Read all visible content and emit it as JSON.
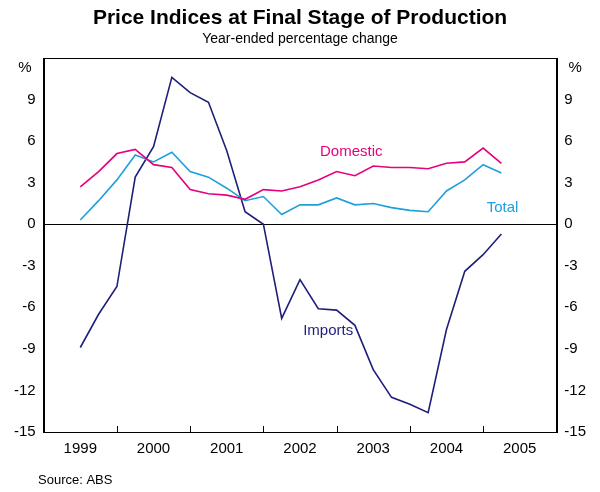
{
  "chart_data": {
    "type": "line",
    "title": "Price Indices at Final Stage of Production",
    "subtitle": "Year-ended percentage change",
    "y_label": "%",
    "source": "Source: ABS",
    "x": [
      1999.5,
      1999.75,
      2000,
      2000.25,
      2000.5,
      2000.75,
      2001,
      2001.25,
      2001.5,
      2001.75,
      2002,
      2002.25,
      2002.5,
      2002.75,
      2003,
      2003.25,
      2003.5,
      2003.75,
      2004,
      2004.25,
      2004.5,
      2004.75,
      2005,
      2005.25
    ],
    "xlim": [
      1999,
      2006
    ],
    "xticks": [
      {
        "value": 1999.5,
        "label": "1999"
      },
      {
        "value": 2000.5,
        "label": "2000"
      },
      {
        "value": 2001.5,
        "label": "2001"
      },
      {
        "value": 2002.5,
        "label": "2002"
      },
      {
        "value": 2003.5,
        "label": "2003"
      },
      {
        "value": 2004.5,
        "label": "2004"
      },
      {
        "value": 2005.5,
        "label": "2005"
      }
    ],
    "ylim": [
      -15,
      12
    ],
    "yticks": [
      -15,
      -12,
      -9,
      -6,
      -3,
      0,
      3,
      6,
      9
    ],
    "y2lim": [
      -15,
      12
    ],
    "y2ticks": [
      -15,
      -12,
      -9,
      -6,
      -3,
      0,
      3,
      6,
      9
    ],
    "grid": false,
    "series": [
      {
        "name": "Domestic",
        "color": "#e5007e",
        "values": [
          2.7,
          3.8,
          5.1,
          5.4,
          4.3,
          4.1,
          2.5,
          2.2,
          2.1,
          1.8,
          2.5,
          2.4,
          2.7,
          3.2,
          3.8,
          3.5,
          4.2,
          4.1,
          4.1,
          4.0,
          4.4,
          4.5,
          5.5,
          4.4
        ]
      },
      {
        "name": "Total",
        "color": "#1ea0dc",
        "values": [
          0.3,
          1.7,
          3.2,
          5.0,
          4.5,
          5.2,
          3.8,
          3.4,
          2.6,
          1.7,
          2.0,
          0.7,
          1.4,
          1.4,
          1.9,
          1.4,
          1.5,
          1.2,
          1.0,
          0.9,
          2.4,
          3.2,
          4.3,
          3.7
        ]
      },
      {
        "name": "Imports",
        "color": "#1f1f7a",
        "values": [
          -8.9,
          -6.5,
          -4.5,
          3.4,
          5.6,
          10.6,
          9.5,
          8.8,
          5.3,
          0.9,
          0.0,
          -6.8,
          -4.0,
          -6.1,
          -6.2,
          -7.3,
          -10.5,
          -12.5,
          -13.0,
          -13.6,
          -7.6,
          -3.4,
          -2.2,
          -0.7
        ]
      }
    ]
  }
}
